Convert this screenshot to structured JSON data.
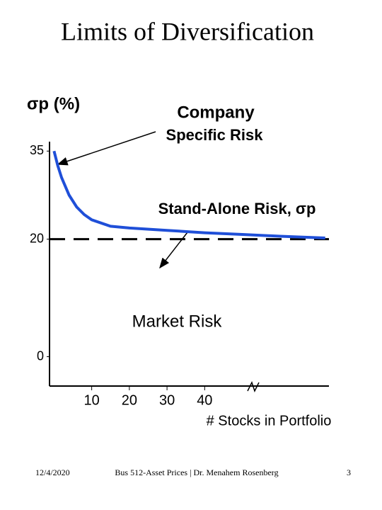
{
  "chart_data": {
    "type": "line",
    "title": "Limits of Diversification",
    "y_label": "σp (%)",
    "x_label": "# Stocks in Portfolio",
    "x": [
      0,
      1,
      2,
      4,
      6,
      8,
      10,
      15,
      20,
      30,
      40,
      50,
      60,
      72
    ],
    "values": [
      35,
      32.5,
      30.5,
      27.5,
      25.5,
      24.2,
      23.3,
      22.2,
      21.9,
      21.5,
      21.1,
      20.8,
      20.5,
      20.2
    ],
    "color": "#1f4fd8",
    "xlim": [
      -1.2,
      73
    ],
    "xticks": [
      10,
      20,
      30,
      40
    ],
    "ylim": [
      -5,
      36
    ],
    "yticks": [
      0,
      20,
      35
    ],
    "reference_line": {
      "value": 20,
      "label": "Market Risk"
    },
    "annotations": [
      [
        "Company",
        "Specific Risk"
      ],
      [
        "Stand-Alone Risk, σp"
      ]
    ]
  },
  "footer": {
    "date": "12/4/2020",
    "course": "Bus 512-Asset Prices | Dr. Menahem Rosenberg",
    "page": "3"
  }
}
